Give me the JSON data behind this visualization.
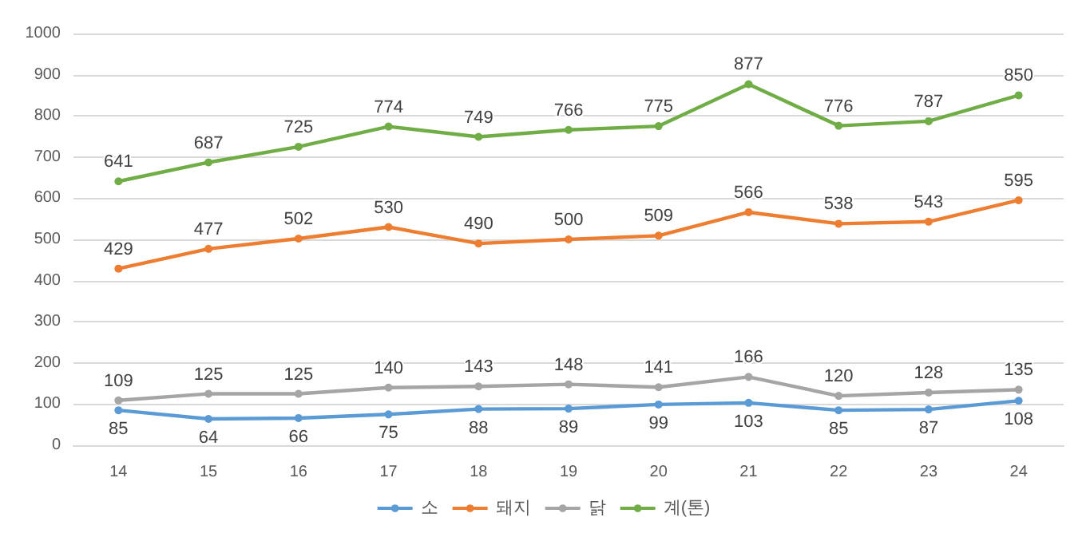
{
  "chart_data": {
    "type": "line",
    "categories": [
      "14",
      "15",
      "16",
      "17",
      "18",
      "19",
      "20",
      "21",
      "22",
      "23",
      "24"
    ],
    "series": [
      {
        "name": "소",
        "color": "#5b9bd5",
        "values": [
          85,
          64,
          66,
          75,
          88,
          89,
          99,
          103,
          85,
          87,
          108
        ]
      },
      {
        "name": "돼지",
        "color": "#ed7d31",
        "values": [
          429,
          477,
          502,
          530,
          490,
          500,
          509,
          566,
          538,
          543,
          595
        ]
      },
      {
        "name": "닭",
        "color": "#a5a5a5",
        "values": [
          109,
          125,
          125,
          140,
          143,
          148,
          141,
          166,
          120,
          128,
          135
        ]
      },
      {
        "name": "계(톤)",
        "color": "#70ad47",
        "values": [
          641,
          687,
          725,
          774,
          749,
          766,
          775,
          877,
          776,
          787,
          850
        ]
      }
    ],
    "ylim": [
      0,
      1000
    ],
    "yticks": [
      0,
      100,
      200,
      300,
      400,
      500,
      600,
      700,
      800,
      900,
      1000
    ],
    "grid": "y",
    "legend": "bottom",
    "marker": "circle",
    "data_labels": true
  }
}
